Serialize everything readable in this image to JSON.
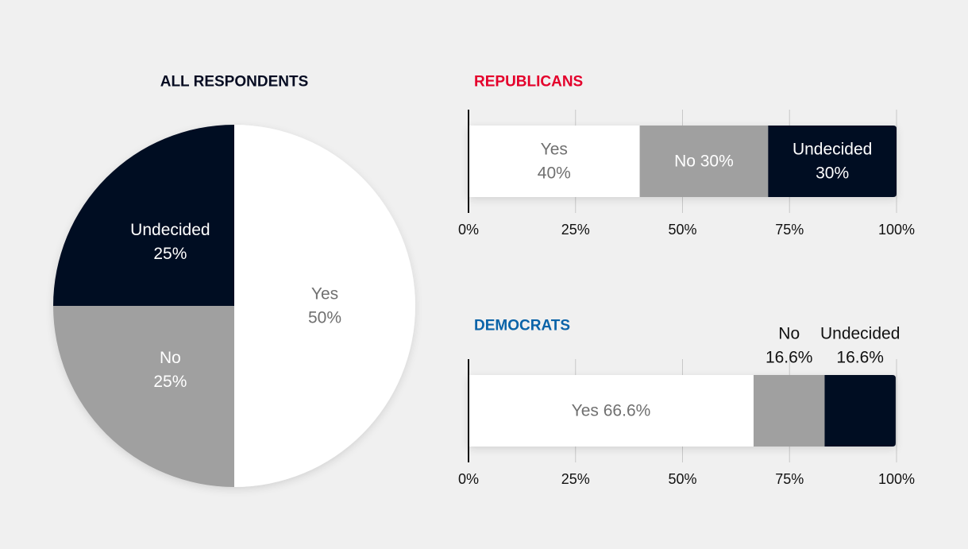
{
  "colors": {
    "background": "#f0f0f0",
    "yes": "#ffffff",
    "no": "#a0a0a0",
    "undecided": "#060c22",
    "title_dark": "#060c22",
    "republican": "#e4002b",
    "democrat": "#0a63a8",
    "yes_text": "#707070",
    "label_light": "#ffffff",
    "label_dark": "#111111",
    "grid": "#c8c8c8",
    "axis": "#111111"
  },
  "chart_data": [
    {
      "type": "pie",
      "title": "ALL RESPONDENTS",
      "slices": [
        {
          "key": "yes",
          "lines": [
            "Yes",
            "50%"
          ],
          "value": 50
        },
        {
          "key": "no",
          "lines": [
            "No",
            "25%"
          ],
          "value": 25
        },
        {
          "key": "undecided",
          "lines": [
            "Undecided",
            "25%"
          ],
          "value": 25
        }
      ]
    },
    {
      "type": "bar",
      "orientation": "horizontal-stacked",
      "title": "REPUBLICANS",
      "title_color": "republican",
      "xlim": [
        0,
        100
      ],
      "ticks": [
        0,
        25,
        50,
        75,
        100
      ],
      "tick_labels": [
        "0%",
        "25%",
        "50%",
        "75%",
        "100%"
      ],
      "grid": true,
      "segments": [
        {
          "key": "yes",
          "lines": [
            "Yes",
            "40%"
          ],
          "value": 40,
          "label_position": "inside"
        },
        {
          "key": "no",
          "lines": [
            "No 30%"
          ],
          "value": 30,
          "label_position": "inside"
        },
        {
          "key": "undecided",
          "lines": [
            "Undecided",
            "30%"
          ],
          "value": 30,
          "label_position": "inside"
        }
      ]
    },
    {
      "type": "bar",
      "orientation": "horizontal-stacked",
      "title": "DEMOCRATS",
      "title_color": "democrat",
      "xlim": [
        0,
        100
      ],
      "ticks": [
        0,
        25,
        50,
        75,
        100
      ],
      "tick_labels": [
        "0%",
        "25%",
        "50%",
        "75%",
        "100%"
      ],
      "grid": true,
      "segments": [
        {
          "key": "yes",
          "lines": [
            "Yes 66.6%"
          ],
          "value": 66.6,
          "label_position": "inside"
        },
        {
          "key": "no",
          "lines": [
            "No",
            "16.6%"
          ],
          "value": 16.6,
          "label_position": "above"
        },
        {
          "key": "undecided",
          "lines": [
            "Undecided",
            "16.6%"
          ],
          "value": 16.6,
          "label_position": "above"
        }
      ]
    }
  ]
}
